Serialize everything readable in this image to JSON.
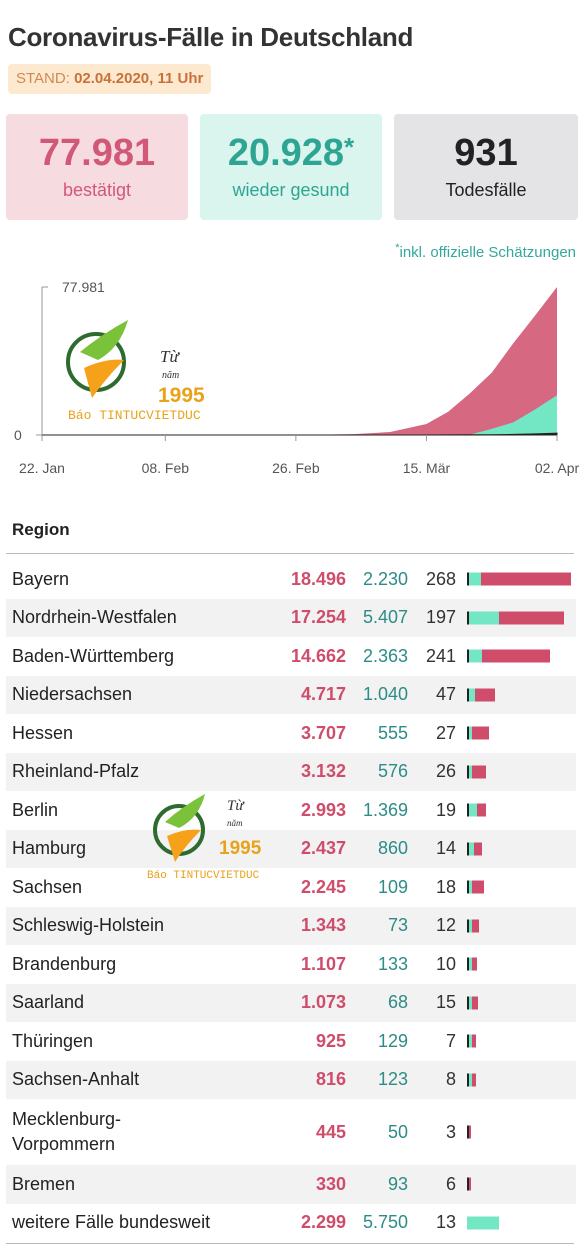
{
  "header": {
    "title": "Coronavirus-Fälle in Deutschland",
    "stand_label": "STAND:",
    "stand_value": "02.04.2020, 11 Uhr"
  },
  "summary": {
    "confirmed": {
      "value": "77.981",
      "label": "bestätigt"
    },
    "recovered": {
      "value": "20.928",
      "star": "*",
      "label": "wieder gesund"
    },
    "deaths": {
      "value": "931",
      "label": "Todesfälle"
    },
    "footnote_star": "*",
    "footnote": "inkl. offizielle Schätzungen"
  },
  "watermark": {
    "line1": "Từ",
    "line2": "năm",
    "year": "1995",
    "brand": "Báo TINTUCVIETDUC"
  },
  "colors": {
    "confirmed": "#cf4d6b",
    "recovered": "#73e7c4",
    "deaths": "#222222"
  },
  "chart_data": {
    "type": "area",
    "title": "",
    "xlabel": "",
    "ylabel": "",
    "x_ticks": [
      "22. Jan",
      "08. Feb",
      "26. Feb",
      "15. Mär",
      "02. Apr"
    ],
    "y_ticks": [
      "0",
      "77.981"
    ],
    "ylim": [
      0,
      77981
    ],
    "x": [
      "2020-01-22",
      "2020-02-08",
      "2020-02-26",
      "2020-03-05",
      "2020-03-10",
      "2020-03-15",
      "2020-03-18",
      "2020-03-21",
      "2020-03-24",
      "2020-03-27",
      "2020-03-30",
      "2020-04-02"
    ],
    "series": [
      {
        "values": [
          0,
          14,
          16,
          480,
          1600,
          5800,
          12300,
          22000,
          32800,
          48500,
          63000,
          77981
        ]
      },
      {
        "values": [
          0,
          0,
          16,
          16,
          18,
          46,
          100,
          200,
          3200,
          6700,
          13500,
          20928
        ]
      },
      {
        "values": [
          0,
          0,
          0,
          0,
          2,
          11,
          28,
          84,
          150,
          340,
          600,
          931
        ]
      }
    ]
  },
  "table": {
    "header": "Region",
    "rows": [
      {
        "region": "Bayern",
        "confirmed": "18.496",
        "recovered": "2.230",
        "deaths": "268",
        "c": 18496,
        "r": 2230
      },
      {
        "region": "Nordrhein-Westfalen",
        "confirmed": "17.254",
        "recovered": "5.407",
        "deaths": "197",
        "c": 17254,
        "r": 5407
      },
      {
        "region": "Baden-Württemberg",
        "confirmed": "14.662",
        "recovered": "2.363",
        "deaths": "241",
        "c": 14662,
        "r": 2363
      },
      {
        "region": "Niedersachsen",
        "confirmed": "4.717",
        "recovered": "1.040",
        "deaths": "47",
        "c": 4717,
        "r": 1040
      },
      {
        "region": "Hessen",
        "confirmed": "3.707",
        "recovered": "555",
        "deaths": "27",
        "c": 3707,
        "r": 555
      },
      {
        "region": "Rheinland-Pfalz",
        "confirmed": "3.132",
        "recovered": "576",
        "deaths": "26",
        "c": 3132,
        "r": 576
      },
      {
        "region": "Berlin",
        "confirmed": "2.993",
        "recovered": "1.369",
        "deaths": "19",
        "c": 2993,
        "r": 1369
      },
      {
        "region": "Hamburg",
        "confirmed": "2.437",
        "recovered": "860",
        "deaths": "14",
        "c": 2437,
        "r": 860
      },
      {
        "region": "Sachsen",
        "confirmed": "2.245",
        "recovered": "109",
        "deaths": "18",
        "c": 2245,
        "r": 109
      },
      {
        "region": "Schleswig-Holstein",
        "confirmed": "1.343",
        "recovered": "73",
        "deaths": "12",
        "c": 1343,
        "r": 73
      },
      {
        "region": "Brandenburg",
        "confirmed": "1.107",
        "recovered": "133",
        "deaths": "10",
        "c": 1107,
        "r": 133
      },
      {
        "region": "Saarland",
        "confirmed": "1.073",
        "recovered": "68",
        "deaths": "15",
        "c": 1073,
        "r": 68
      },
      {
        "region": "Thüringen",
        "confirmed": "925",
        "recovered": "129",
        "deaths": "7",
        "c": 925,
        "r": 129
      },
      {
        "region": "Sachsen-Anhalt",
        "confirmed": "816",
        "recovered": "123",
        "deaths": "8",
        "c": 816,
        "r": 123
      },
      {
        "region": "Mecklenburg-Vorpommern",
        "region_lines": [
          "Mecklenburg-",
          "Vorpommern"
        ],
        "confirmed": "445",
        "recovered": "50",
        "deaths": "3",
        "c": 445,
        "r": 50
      },
      {
        "region": "Bremen",
        "confirmed": "330",
        "recovered": "93",
        "deaths": "6",
        "c": 330,
        "r": 93
      },
      {
        "region": "weitere Fälle bundesweit",
        "confirmed": "2.299",
        "recovered": "5.750",
        "deaths": "13",
        "c": 2299,
        "r": 5750
      }
    ]
  }
}
